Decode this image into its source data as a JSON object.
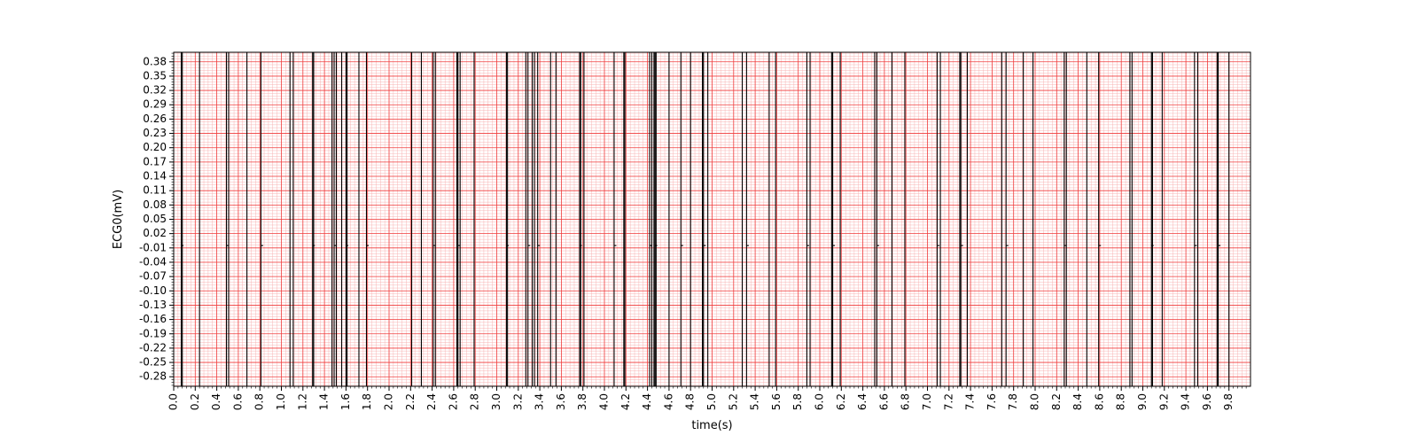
{
  "chart_data": {
    "type": "line",
    "title": "",
    "xlabel": "time(s)",
    "ylabel": "ECG0(mV)",
    "xlim": [
      0.0,
      10.0
    ],
    "ylim": [
      -0.3,
      0.4
    ],
    "grid": true,
    "major_grid_color": "#f03c3c",
    "minor_grid_color": "#f8b4b4",
    "line_color": "#000000",
    "x_tick_labels": [
      "0.0",
      "0.2",
      "0.4",
      "0.6",
      "0.8",
      "1.0",
      "1.2",
      "1.4",
      "1.6",
      "1.8",
      "2.0",
      "2.2",
      "2.4",
      "2.6",
      "2.8",
      "3.0",
      "3.2",
      "3.4",
      "3.6",
      "3.8",
      "4.0",
      "4.2",
      "4.4",
      "4.6",
      "4.8",
      "5.0",
      "5.2",
      "5.4",
      "5.6",
      "5.8",
      "6.0",
      "6.2",
      "6.4",
      "6.6",
      "6.8",
      "7.0",
      "7.2",
      "7.4",
      "7.6",
      "7.8",
      "8.0",
      "8.2",
      "8.4",
      "8.6",
      "8.8",
      "9.0",
      "9.2",
      "9.4",
      "9.6",
      "9.8"
    ],
    "y_tick_labels": [
      "-0.28",
      "-0.25",
      "-0.22",
      "-0.19",
      "-0.16",
      "-0.13",
      "-0.10",
      "-0.07",
      "-0.04",
      "-0.01",
      "0.02",
      "0.05",
      "0.08",
      "0.11",
      "0.14",
      "0.17",
      "0.20",
      "0.23",
      "0.26",
      "0.29",
      "0.32",
      "0.35",
      "0.38"
    ],
    "series": [
      {
        "transitions": [
          0.07,
          0.08,
          0.24,
          0.49,
          0.51,
          0.68,
          0.81,
          1.08,
          1.11,
          1.29,
          1.3,
          1.47,
          1.49,
          1.51,
          1.56,
          1.6,
          1.61,
          1.72,
          1.79,
          2.21,
          2.3,
          2.41,
          2.43,
          2.63,
          2.64,
          2.66,
          2.79,
          3.09,
          3.1,
          3.27,
          3.29,
          3.33,
          3.35,
          3.38,
          3.5,
          3.55,
          3.77,
          3.78,
          3.81,
          4.09,
          4.18,
          4.19,
          4.42,
          4.44,
          4.46,
          4.47,
          4.48,
          4.6,
          4.71,
          4.8,
          4.91,
          4.92,
          4.96,
          5.28,
          5.32,
          5.53,
          5.59,
          5.88,
          5.91,
          6.11,
          6.12,
          6.19,
          6.51,
          6.53,
          6.67,
          6.79,
          7.09,
          7.12,
          7.3,
          7.31,
          7.37,
          7.69,
          7.73,
          7.89,
          7.98,
          8.27,
          8.29,
          8.48,
          8.59,
          8.88,
          8.9,
          9.08,
          9.09,
          9.18,
          9.48,
          9.51,
          9.69,
          9.7,
          9.8
        ],
        "y_levels": [
          -0.3,
          -0.005,
          0.4
        ]
      }
    ]
  }
}
